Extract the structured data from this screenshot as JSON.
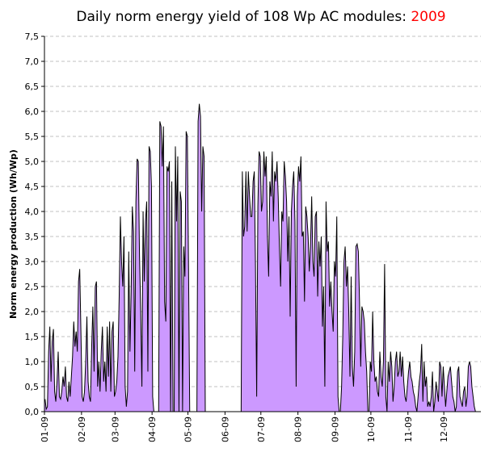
{
  "chart_data": {
    "type": "area",
    "title_prefix": "Daily norm energy yield of 108 Wp AC modules: ",
    "title_year": "2009",
    "ylabel": "Norm energy production (Wh/Wp)",
    "xlabel": "",
    "ylim": [
      0,
      7.5
    ],
    "y_ticks": [
      "0,0",
      "0,5",
      "1,0",
      "1,5",
      "2,0",
      "2,5",
      "3,0",
      "3,5",
      "4,0",
      "4,5",
      "5,0",
      "5,5",
      "6,0",
      "6,5",
      "7,0",
      "7,5"
    ],
    "x_tick_labels": [
      "01-09",
      "02-09",
      "03-09",
      "04-09",
      "05-09",
      "06-09",
      "07-09",
      "08-09",
      "09-09",
      "10-09",
      "11-09",
      "12-09"
    ],
    "x_tick_days": [
      1,
      32,
      60,
      91,
      121,
      152,
      182,
      213,
      244,
      274,
      305,
      335
    ],
    "days_in_year": 365,
    "grid": "horizontal dashed",
    "legend": "none",
    "colors": {
      "fill": "#cc99ff",
      "line": "#000000",
      "grid": "#c0c0c0",
      "title_year": "#ff0000"
    },
    "series": [
      {
        "values": [
          0.25,
          0.05,
          0.1,
          1.2,
          1.7,
          0.6,
          1.4,
          1.65,
          0.4,
          0.2,
          0.6,
          1.2,
          0.3,
          0.25,
          0.4,
          0.7,
          0.5,
          0.9,
          0.3,
          0.2,
          0.6,
          0.3,
          0.7,
          1.1,
          1.8,
          1.3,
          1.6,
          1.2,
          2.6,
          2.85,
          1.6,
          0.3,
          0.2,
          0.4,
          1.0,
          1.9,
          0.6,
          0.3,
          0.2,
          1.3,
          2.1,
          0.8,
          2.5,
          2.6,
          0.5,
          1.0,
          0.4,
          1.2,
          1.7,
          0.6,
          1.0,
          0.4,
          1.7,
          0.7,
          1.8,
          0.4,
          1.6,
          1.8,
          0.3,
          0.4,
          0.6,
          1.1,
          2.3,
          3.9,
          3.0,
          2.5,
          3.5,
          0.5,
          0.1,
          0.4,
          3.2,
          1.2,
          2.4,
          4.1,
          3.6,
          0.8,
          4.2,
          5.05,
          5.0,
          3.1,
          2.0,
          0.5,
          4.0,
          2.6,
          3.8,
          4.2,
          0.8,
          5.3,
          5.2,
          4.5,
          0.3,
          0.0,
          0.0,
          0.0,
          0.0,
          0.0,
          5.8,
          5.7,
          4.9,
          5.7,
          2.2,
          1.8,
          4.9,
          4.8,
          5.0,
          0.0,
          4.6,
          0.0,
          0.0,
          5.3,
          3.8,
          5.1,
          0.0,
          4.4,
          4.2,
          0.0,
          3.3,
          2.7,
          5.6,
          5.5,
          2.9,
          0.0,
          0.0,
          0.0,
          0.0,
          0.0,
          0.0,
          0.0,
          5.8,
          6.15,
          5.9,
          4.0,
          5.3,
          5.1,
          0.0,
          0.0,
          0.0,
          0.0,
          0.0,
          0.0,
          0.0,
          0.0,
          0.0,
          0.0,
          0.0,
          0.0,
          0.0,
          0.0,
          0.0,
          0.0,
          0.0,
          0.0,
          0.0,
          0.0,
          0.0,
          0.0,
          0.0,
          0.0,
          0.0,
          0.0,
          0.0,
          0.0,
          0.0,
          0.0,
          0.0,
          4.8,
          3.5,
          3.7,
          4.8,
          3.6,
          4.8,
          4.3,
          3.9,
          3.9,
          4.6,
          4.8,
          2.9,
          0.3,
          4.1,
          5.2,
          5.1,
          4.0,
          4.2,
          5.2,
          4.7,
          5.1,
          3.5,
          2.7,
          4.6,
          4.3,
          5.2,
          3.8,
          4.8,
          4.6,
          5.0,
          4.3,
          3.3,
          2.5,
          4.0,
          3.8,
          5.0,
          4.7,
          4.2,
          3.0,
          3.9,
          1.9,
          4.0,
          4.5,
          4.8,
          3.8,
          0.5,
          4.3,
          4.9,
          4.6,
          5.1,
          3.5,
          3.6,
          2.2,
          4.1,
          3.9,
          3.5,
          2.8,
          3.3,
          4.3,
          3.0,
          2.7,
          3.9,
          4.0,
          2.3,
          3.4,
          2.9,
          3.5,
          1.7,
          2.5,
          0.5,
          4.2,
          3.2,
          3.4,
          2.1,
          2.6,
          2.0,
          1.6,
          3.0,
          2.7,
          3.9,
          0.3,
          0.0,
          0.0,
          0.5,
          1.5,
          3.0,
          3.3,
          2.5,
          2.9,
          2.0,
          0.7,
          2.7,
          0.9,
          0.5,
          1.2,
          3.3,
          3.35,
          3.2,
          2.2,
          0.9,
          2.1,
          2.0,
          1.8,
          1.2,
          0.8,
          0.0,
          0.0,
          1.0,
          0.8,
          2.0,
          1.0,
          0.6,
          0.7,
          0.4,
          0.3,
          1.2,
          0.7,
          0.5,
          1.0,
          2.95,
          0.3,
          0.0,
          1.0,
          0.6,
          1.2,
          0.9,
          0.2,
          0.5,
          1.0,
          1.2,
          0.7,
          0.8,
          1.2,
          0.7,
          1.1,
          0.6,
          0.3,
          0.2,
          0.5,
          0.8,
          1.0,
          0.7,
          0.6,
          0.4,
          0.3,
          0.1,
          0.0,
          0.3,
          0.6,
          0.8,
          1.35,
          0.2,
          1.0,
          0.5,
          0.7,
          0.1,
          0.2,
          0.1,
          0.3,
          0.8,
          0.0,
          0.2,
          0.6,
          0.4,
          0.2,
          1.0,
          0.9,
          0.3,
          0.9,
          0.5,
          0.1,
          0.4,
          0.7,
          0.8,
          0.9,
          0.6,
          0.3,
          0.2,
          0.0,
          0.1,
          0.8,
          0.9,
          0.3,
          0.2,
          0.1,
          0.4,
          0.5,
          0.1,
          0.3,
          0.9,
          1.0,
          0.9,
          0.5,
          0.3,
          0.1,
          0.0
        ]
      }
    ]
  }
}
